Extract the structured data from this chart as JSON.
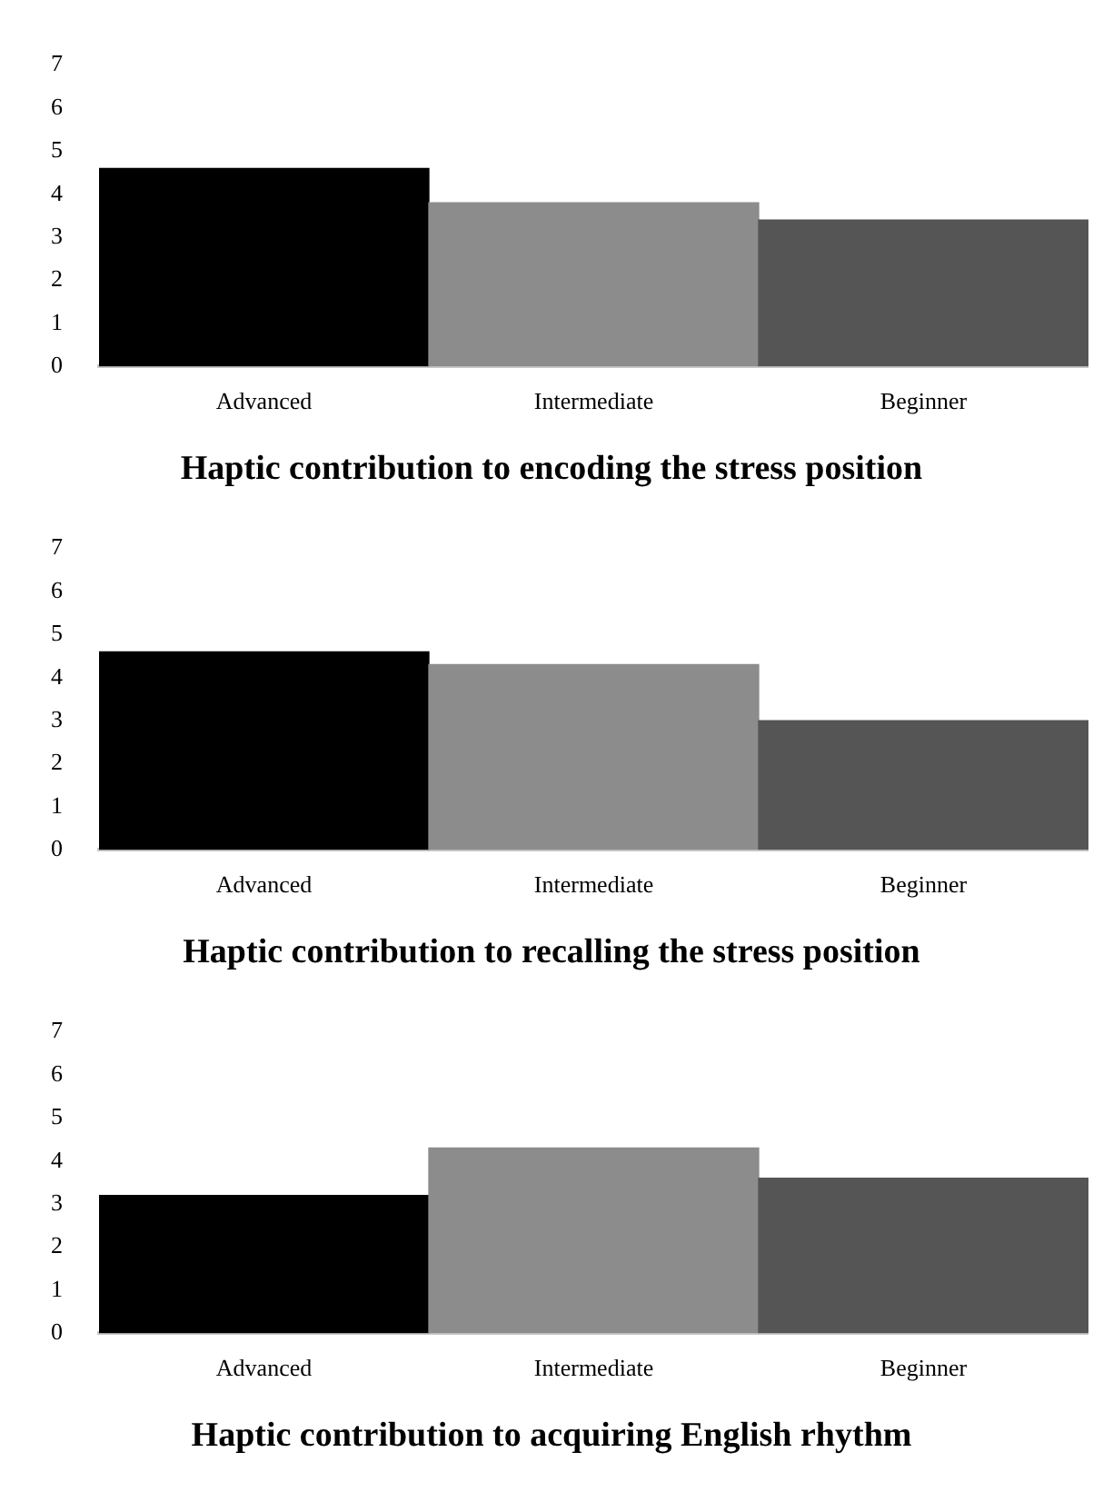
{
  "chart_data": [
    {
      "type": "bar",
      "title": "Haptic contribution to encoding the stress position",
      "categories": [
        "Advanced",
        "Intermediate",
        "Beginner"
      ],
      "values": [
        4.6,
        3.8,
        3.4
      ],
      "colors": [
        "#000000",
        "#8c8c8c",
        "#555555"
      ],
      "ylim": [
        0,
        7
      ],
      "yticks": [
        0,
        1,
        2,
        3,
        4,
        5,
        6,
        7
      ],
      "grid": false,
      "legend": false
    },
    {
      "type": "bar",
      "title": "Haptic contribution to recalling the stress position",
      "categories": [
        "Advanced",
        "Intermediate",
        "Beginner"
      ],
      "values": [
        4.6,
        4.3,
        3.0
      ],
      "colors": [
        "#000000",
        "#8c8c8c",
        "#555555"
      ],
      "ylim": [
        0,
        7
      ],
      "yticks": [
        0,
        1,
        2,
        3,
        4,
        5,
        6,
        7
      ],
      "grid": false,
      "legend": false
    },
    {
      "type": "bar",
      "title": "Haptic contribution to acquiring English rhythm",
      "categories": [
        "Advanced",
        "Intermediate",
        "Beginner"
      ],
      "values": [
        3.2,
        4.3,
        3.6
      ],
      "colors": [
        "#000000",
        "#8c8c8c",
        "#555555"
      ],
      "ylim": [
        0,
        7
      ],
      "yticks": [
        0,
        1,
        2,
        3,
        4,
        5,
        6,
        7
      ],
      "grid": false,
      "legend": false
    }
  ]
}
